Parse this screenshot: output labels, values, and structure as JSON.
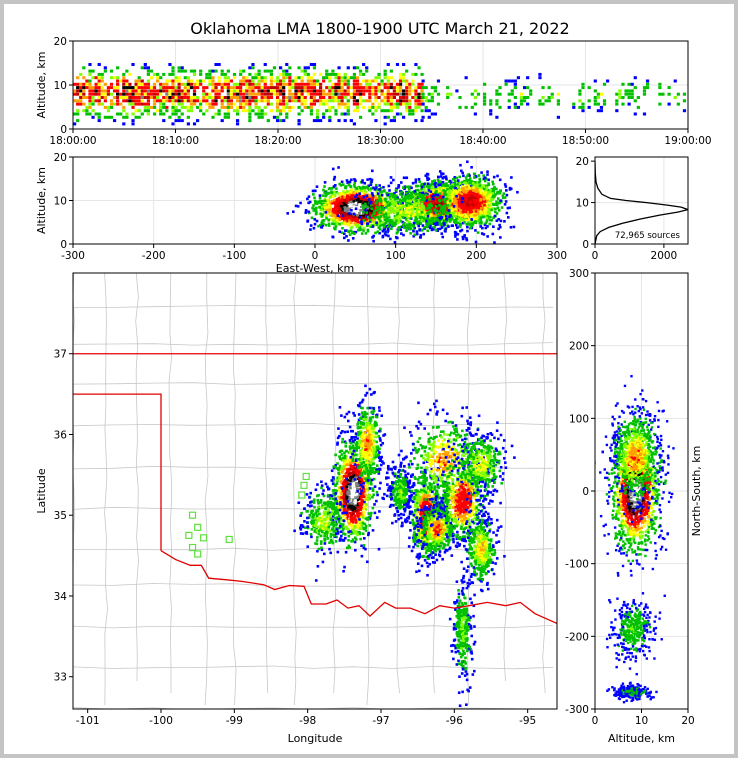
{
  "title": "Oklahoma LMA 1800-1900 UTC March 21, 2022",
  "chart_data": [
    {
      "id": "time-altitude",
      "type": "heatmap",
      "ylabel": "Altitude, km",
      "xlim": [
        "18:00:00",
        "19:00:00"
      ],
      "ylim": [
        0,
        20
      ],
      "x_ticks": [
        "18:00:00",
        "18:10:00",
        "18:20:00",
        "18:30:00",
        "18:40:00",
        "18:50:00",
        "19:00:00"
      ],
      "y_ticks": [
        0,
        10,
        20
      ],
      "clusters": [
        {
          "t0": 0,
          "t1": 34,
          "alt_center": 8.5,
          "alt_spread": 3.5,
          "density": 1.0
        },
        {
          "t0": 34,
          "t1": 60,
          "alt_center": 8,
          "alt_spread": 2.5,
          "density": 0.45
        }
      ]
    },
    {
      "id": "eastwest-altitude",
      "type": "heatmap",
      "xlabel": "East-West, km",
      "ylabel": "Altitude, km",
      "xlim": [
        -300,
        300
      ],
      "ylim": [
        0,
        20
      ],
      "x_ticks": [
        -300,
        -200,
        -100,
        0,
        100,
        200,
        300
      ],
      "y_ticks": [
        0,
        10,
        20
      ],
      "clusters": [
        {
          "x": 50,
          "alt": 8.5,
          "sx": 25,
          "sy": 2.5,
          "peak": 1.0
        },
        {
          "x": 150,
          "alt": 9.5,
          "sx": 20,
          "sy": 2.5,
          "peak": 0.75
        },
        {
          "x": 190,
          "alt": 10,
          "sx": 20,
          "sy": 3,
          "peak": 0.7
        },
        {
          "x": 110,
          "alt": 8,
          "sx": 30,
          "sy": 3,
          "peak": 0.35
        }
      ]
    },
    {
      "id": "altitude-histogram",
      "type": "line",
      "annotation": "72,965 sources",
      "xlim": [
        0,
        2700
      ],
      "ylim": [
        0,
        21
      ],
      "x_ticks": [
        0,
        2000
      ],
      "y_ticks": [
        0,
        10,
        20
      ],
      "points": [
        [
          0,
          0
        ],
        [
          50,
          2
        ],
        [
          150,
          3
        ],
        [
          400,
          4
        ],
        [
          800,
          5
        ],
        [
          1300,
          6
        ],
        [
          1900,
          7
        ],
        [
          2400,
          7.7
        ],
        [
          2700,
          8.3
        ],
        [
          2500,
          8.9
        ],
        [
          2100,
          9.4
        ],
        [
          1500,
          10
        ],
        [
          900,
          10.5
        ],
        [
          450,
          11
        ],
        [
          200,
          12
        ],
        [
          80,
          13.5
        ],
        [
          30,
          15
        ],
        [
          10,
          17
        ],
        [
          0,
          20
        ]
      ]
    },
    {
      "id": "plan-view-map",
      "type": "scatter",
      "xlabel": "Longitude",
      "ylabel": "Latitude",
      "xlim": [
        -101.2,
        -94.6
      ],
      "ylim": [
        32.6,
        38.0
      ],
      "x_ticks": [
        -101,
        -100,
        -99,
        -98,
        -97,
        -96,
        -95
      ],
      "y_ticks": [
        33,
        34,
        35,
        36,
        37
      ],
      "stations": [
        [
          -99.57,
          35.0
        ],
        [
          -99.5,
          34.85
        ],
        [
          -99.62,
          34.75
        ],
        [
          -99.42,
          34.72
        ],
        [
          -99.57,
          34.6
        ],
        [
          -99.5,
          34.52
        ],
        [
          -99.07,
          34.7
        ],
        [
          -98.02,
          35.48
        ],
        [
          -98.05,
          35.37
        ],
        [
          -98.08,
          35.25
        ]
      ],
      "clusters": [
        {
          "lon": -97.4,
          "lat": 35.3,
          "slon": 0.13,
          "slat": 0.3,
          "peak": 1.0
        },
        {
          "lon": -97.2,
          "lat": 35.9,
          "slon": 0.1,
          "slat": 0.25,
          "peak": 0.5
        },
        {
          "lon": -96.4,
          "lat": 35.0,
          "slon": 0.1,
          "slat": 0.25,
          "peak": 0.75
        },
        {
          "lon": -96.25,
          "lat": 34.85,
          "slon": 0.12,
          "slat": 0.15,
          "peak": 0.55
        },
        {
          "lon": -96.15,
          "lat": 35.7,
          "slon": 0.25,
          "slat": 0.25,
          "peak": 0.5
        },
        {
          "lon": -95.9,
          "lat": 35.2,
          "slon": 0.15,
          "slat": 0.25,
          "peak": 0.65
        },
        {
          "lon": -95.65,
          "lat": 35.65,
          "slon": 0.15,
          "slat": 0.2,
          "peak": 0.4
        },
        {
          "lon": -95.65,
          "lat": 34.6,
          "slon": 0.1,
          "slat": 0.2,
          "peak": 0.45
        },
        {
          "lon": -95.9,
          "lat": 33.6,
          "slon": 0.06,
          "slat": 0.3,
          "peak": 0.3
        },
        {
          "lon": -97.8,
          "lat": 34.95,
          "slon": 0.15,
          "slat": 0.2,
          "peak": 0.35
        },
        {
          "lon": -96.75,
          "lat": 35.3,
          "slon": 0.08,
          "slat": 0.15,
          "peak": 0.3
        }
      ]
    },
    {
      "id": "altitude-northsouth",
      "type": "heatmap",
      "xlabel": "Altitude, km",
      "ylabel": "North-South, km",
      "xlim": [
        0,
        20
      ],
      "ylim": [
        -300,
        300
      ],
      "x_ticks": [
        0,
        10,
        20
      ],
      "y_ticks": [
        -300,
        -200,
        -100,
        0,
        100,
        200,
        300
      ],
      "clusters": [
        {
          "alt": 8.5,
          "y": 0,
          "sx": 2.5,
          "sy": 40,
          "peak": 1.0
        },
        {
          "alt": 8.5,
          "y": 50,
          "sx": 2.5,
          "sy": 30,
          "peak": 0.5
        },
        {
          "alt": 8,
          "y": -190,
          "sx": 2,
          "sy": 20,
          "peak": 0.25
        },
        {
          "alt": 8,
          "y": -275,
          "sx": 2,
          "sy": 5,
          "peak": 0.15
        }
      ]
    }
  ]
}
